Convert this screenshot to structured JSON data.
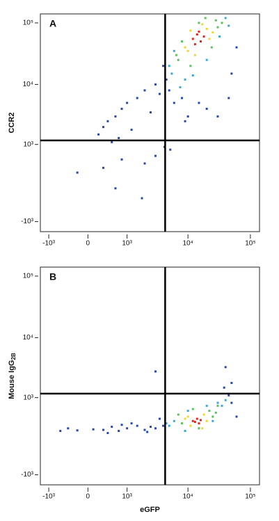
{
  "chart_data": [
    {
      "type": "scatter",
      "label": "A",
      "scale": "biexponential",
      "y_label": "CCR2",
      "xlim": [
        -1400,
        140000
      ],
      "ylim": [
        -1500,
        140000
      ],
      "xticks": [
        {
          "value": -1000,
          "label": "-10³"
        },
        0,
        {
          "value": 1000,
          "label": "10³"
        },
        {
          "value": 10000,
          "label": "10⁴"
        },
        {
          "value": 100000,
          "label": "10⁵"
        }
      ],
      "yticks": [
        {
          "value": -1000,
          "label": "-10³"
        },
        {
          "value": 1000,
          "label": "10³"
        },
        {
          "value": 10000,
          "label": "10⁴"
        },
        {
          "value": 100000,
          "label": "10⁵"
        }
      ],
      "gate_x": 4300,
      "gate_y": 1180,
      "series": [
        {
          "color": "#2448b0",
          "x": [
            4500,
            5000,
            6000,
            8000,
            10000,
            3000,
            2000,
            1500,
            1000,
            800,
            600,
            400,
            300,
            200,
            3500,
            2500,
            1200,
            700,
            500,
            4000,
            9000,
            15000,
            20000,
            30000,
            50000,
            60000,
            4200,
            5200,
            -200,
            300,
            800,
            2000,
            1800,
            600,
            3000,
            45000
          ],
          "values": [
            12000,
            8000,
            5000,
            6000,
            3000,
            10000,
            8000,
            6000,
            5000,
            4000,
            3000,
            2500,
            2000,
            1500,
            7000,
            3500,
            1800,
            1300,
            1100,
            20000,
            2500,
            5000,
            4000,
            3000,
            15000,
            40000,
            900,
            800,
            200,
            300,
            500,
            400,
            -300,
            -100,
            600,
            6000
          ]
        },
        {
          "color": "#3aa8d8",
          "x": [
            5500,
            6000,
            9000,
            40000,
            45000,
            20000,
            5000,
            7500,
            32000,
            12000
          ],
          "values": [
            15000,
            35000,
            12000,
            120000,
            90000,
            25000,
            20000,
            9000,
            60000,
            14000
          ]
        },
        {
          "color": "#5cc05c",
          "x": [
            7000,
            8000,
            28000,
            30000,
            19000,
            6500,
            24000,
            11000,
            35000,
            15000
          ],
          "values": [
            25000,
            50000,
            110000,
            85000,
            120000,
            30000,
            40000,
            20000,
            100000,
            100000
          ]
        },
        {
          "color": "#f2d62a",
          "x": [
            9000,
            11000,
            20000,
            22000,
            17000,
            10000,
            25000,
            13000
          ],
          "values": [
            40000,
            75000,
            80000,
            55000,
            95000,
            35000,
            70000,
            30000
          ]
        },
        {
          "color": "#e0261f",
          "x": [
            12000,
            14000,
            16000,
            13000,
            18000,
            15000
          ],
          "values": [
            55000,
            65000,
            50000,
            45000,
            60000,
            72000
          ]
        }
      ]
    },
    {
      "type": "scatter",
      "label": "B",
      "scale": "biexponential",
      "y_label": "Mouse IgG",
      "y_label_sub": "2B",
      "x_label": "eGFP",
      "xlim": [
        -1400,
        140000
      ],
      "ylim": [
        -1500,
        140000
      ],
      "xticks": [
        {
          "value": -1000,
          "label": "-10³"
        },
        0,
        {
          "value": 1000,
          "label": "10³"
        },
        {
          "value": 10000,
          "label": "10⁴"
        },
        {
          "value": 100000,
          "label": "10⁵"
        }
      ],
      "yticks": [
        {
          "value": -1000,
          "label": "-10³"
        },
        {
          "value": 1000,
          "label": "10³"
        },
        {
          "value": 10000,
          "label": "10⁴"
        },
        {
          "value": 100000,
          "label": "10⁵"
        }
      ],
      "gate_x": 4300,
      "gate_y": 1180,
      "series": [
        {
          "color": "#2448b0",
          "x": [
            45000,
            50000,
            38000,
            4000,
            3000,
            2500,
            2000,
            1500,
            1000,
            700,
            500,
            300,
            100,
            -200,
            -400,
            -600,
            1200,
            2200,
            3500,
            800,
            400,
            60000,
            3000,
            50000,
            40000
          ],
          "values": [
            1100,
            800,
            1500,
            200,
            150,
            180,
            120,
            200,
            150,
            100,
            180,
            120,
            130,
            110,
            150,
            100,
            250,
            80,
            350,
            220,
            60,
            400,
            2800,
            1800,
            3300
          ]
        },
        {
          "color": "#3aa8d8",
          "x": [
            6000,
            5000,
            9000,
            30000,
            35000,
            40000,
            20000,
            4500,
            10000,
            25000
          ],
          "values": [
            300,
            200,
            100,
            800,
            700,
            900,
            700,
            250,
            550,
            300
          ]
        },
        {
          "color": "#5cc05c",
          "x": [
            8000,
            7000,
            22000,
            25000,
            15000,
            12000,
            28000,
            30000
          ],
          "values": [
            250,
            450,
            550,
            400,
            150,
            600,
            500,
            700
          ]
        },
        {
          "color": "#f2d62a",
          "x": [
            10000,
            11000,
            18000,
            20000,
            9000,
            17000
          ],
          "values": [
            400,
            200,
            450,
            300,
            350,
            150
          ]
        },
        {
          "color": "#e0261f",
          "x": [
            12000,
            14000,
            15000,
            13000,
            16000
          ],
          "values": [
            300,
            350,
            250,
            280,
            320
          ]
        }
      ]
    }
  ]
}
